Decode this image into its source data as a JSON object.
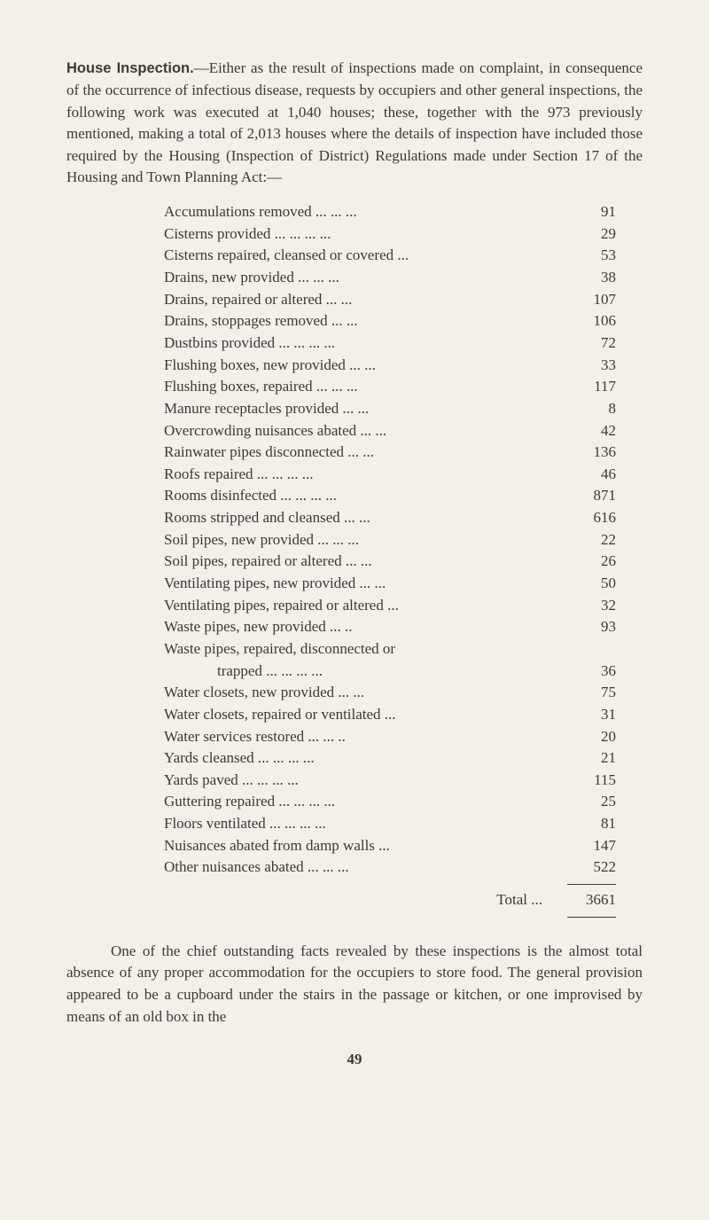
{
  "intro": {
    "title": "House Inspection.",
    "text": "—Either as the result of inspections made on complaint, in consequence of the occurrence of infectious disease, requests by occupiers and other general inspections, the following work was executed at 1,040 houses; these, together with the 973 previously mentioned, making a total of 2,013 houses where the details of inspection have included those required by the Housing (Inspection of District) Regulations made under Section 17 of the Housing and Town Planning Act:—"
  },
  "inspections": [
    {
      "label": "Accumulations removed   ...      ...      ...",
      "value": "91"
    },
    {
      "label": "Cisterns provided   ...       ...       ...       ...",
      "value": "29"
    },
    {
      "label": "Cisterns repaired, cleansed or covered ...",
      "value": "53"
    },
    {
      "label": "Drains, new provided         ...       ...       ...",
      "value": "38"
    },
    {
      "label": "Drains, repaired or altered          ...       ...",
      "value": "107"
    },
    {
      "label": "Drains, stoppages removed         ...      ...",
      "value": "106"
    },
    {
      "label": "Dustbins provided ...       ...       ...       ...",
      "value": "72"
    },
    {
      "label": "Flushing boxes, new provided     ...       ...",
      "value": "33"
    },
    {
      "label": "Flushing boxes, repaired ...       ...       ...",
      "value": "117"
    },
    {
      "label": "Manure receptacles provided        ...       ...",
      "value": "8"
    },
    {
      "label": "Overcrowding nuisances abated ...       ...",
      "value": "42"
    },
    {
      "label": "Rainwater pipes disconnected     ...       ...",
      "value": "136"
    },
    {
      "label": "Roofs repaired         ...       ...       ...       ...",
      "value": "46"
    },
    {
      "label": "Rooms disinfected ...       ...       ...       ...",
      "value": "871"
    },
    {
      "label": "Rooms stripped and cleansed       ...       ...",
      "value": "616"
    },
    {
      "label": "Soil pipes, new provided ...        ...       ...",
      "value": "22"
    },
    {
      "label": "Soil pipes, repaired or altered      ...       ...",
      "value": "26"
    },
    {
      "label": "Ventilating pipes, new provided ...       ...",
      "value": "50"
    },
    {
      "label": "Ventilating pipes, repaired or altered ...",
      "value": "32"
    },
    {
      "label": "Waste pipes, new provided          ...       ..",
      "value": "93"
    },
    {
      "label": "Waste pipes, repaired, disconnected or",
      "value": ""
    },
    {
      "label": "trapped           ...       ...       ...       ...",
      "value": "36",
      "indented": true
    },
    {
      "label": "Water closets, new provided        ...       ...",
      "value": "75"
    },
    {
      "label": "Water closets, repaired or ventilated      ...",
      "value": "31"
    },
    {
      "label": "Water services restored      ...       ...       ..",
      "value": "20"
    },
    {
      "label": "Yards cleansed         ...       ...       ...       ...",
      "value": "21"
    },
    {
      "label": "Yards paved             ...       ...       ...       ...",
      "value": "115"
    },
    {
      "label": "Guttering repaired ...       ...       ...       ...",
      "value": "25"
    },
    {
      "label": "Floors ventilated      ...       ...       ...       ...",
      "value": "81"
    },
    {
      "label": "Nuisances abated from damp walls        ...",
      "value": "147"
    },
    {
      "label": "Other nuisances abated      ...       ...       ...",
      "value": "522"
    }
  ],
  "total": {
    "label": "Total    ...",
    "value": "3661"
  },
  "closing": "One of the chief outstanding facts revealed by these inspections is the almost total absence of any proper accommodation for the occupiers to store food. The general provision appeared to be a cupboard under the stairs in the passage or kitchen, or one improvised by means of an old box in the",
  "page_number": "49",
  "colors": {
    "background": "#f3efe9",
    "text": "#3a3a3a"
  },
  "typography": {
    "body_font_size": 17,
    "title_font_size": 16.5,
    "line_height": 1.45
  }
}
